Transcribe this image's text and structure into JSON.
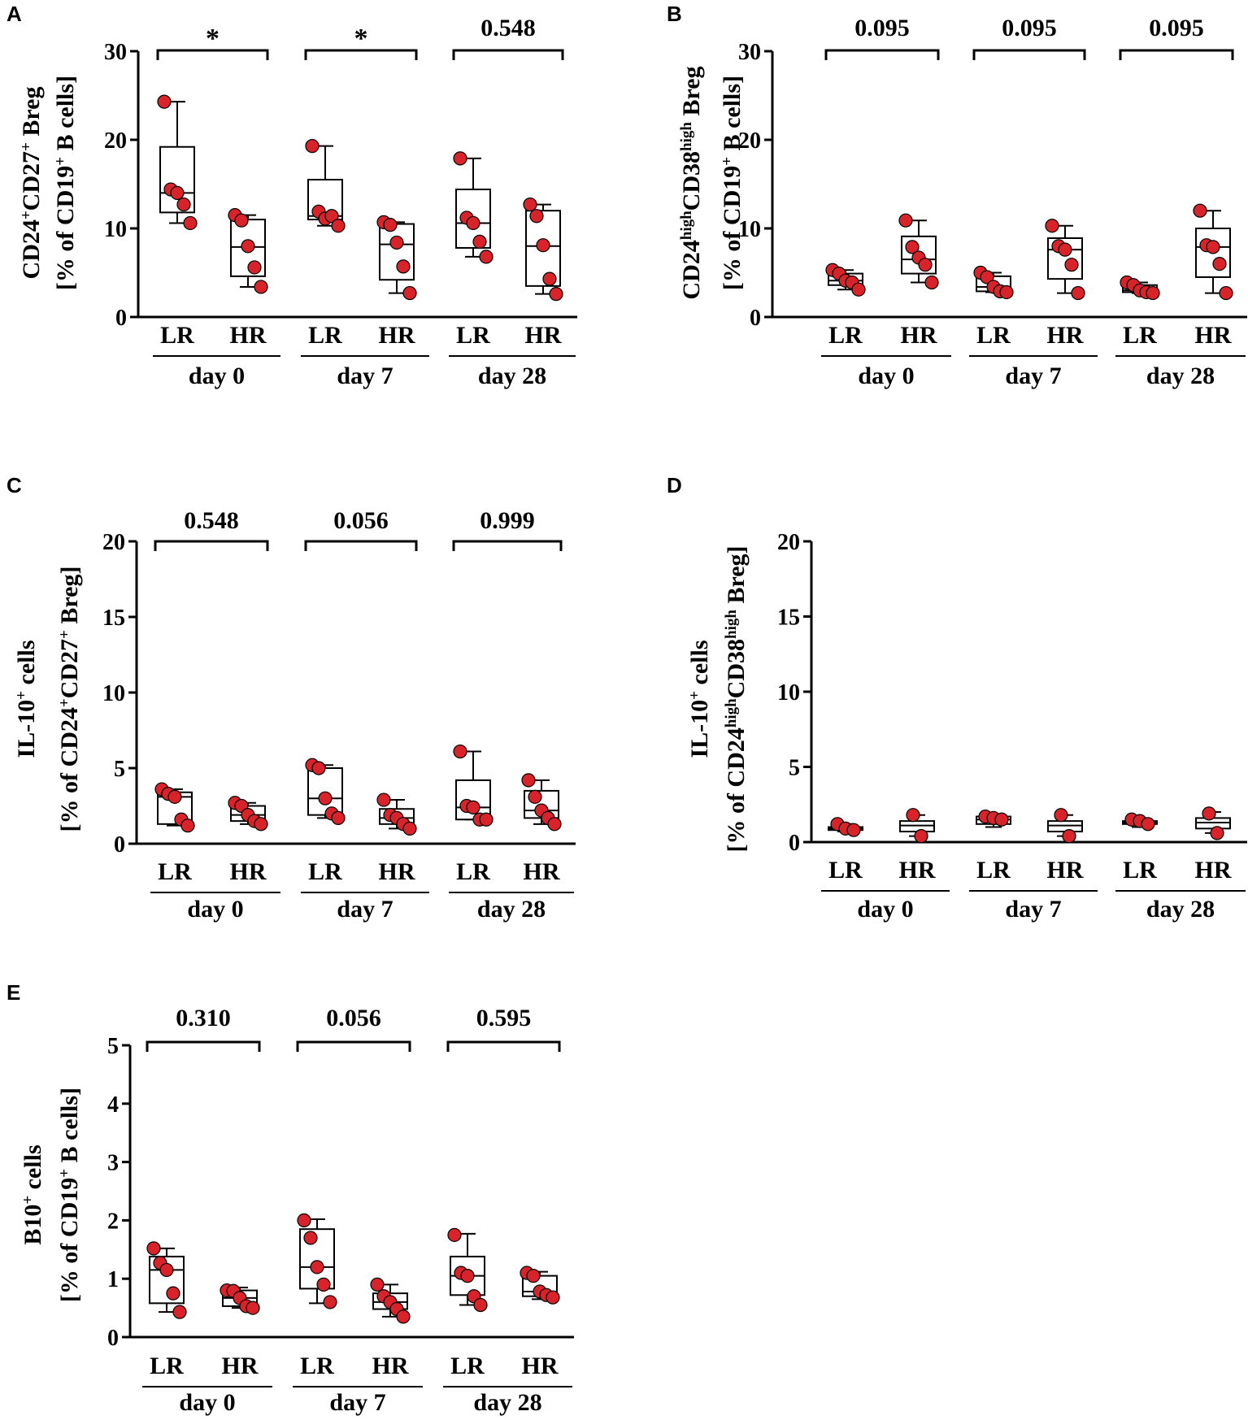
{
  "chart_data": [
    {
      "panel": "A",
      "type": "box",
      "ylabel": [
        "CD24+CD27+ Breg",
        "[% of CD19+ B cells]"
      ],
      "ylim": [
        0,
        30
      ],
      "yticks": [
        0,
        10,
        20,
        30
      ],
      "groups": [
        "LR",
        "HR",
        "LR",
        "HR",
        "LR",
        "HR"
      ],
      "days": [
        "day 0",
        "day 7",
        "day 28"
      ],
      "pvalues": [
        "*",
        "*",
        "0.548"
      ],
      "boxes": [
        {
          "min": 10.6,
          "q1": 11.8,
          "median": 14.0,
          "q3": 19.2,
          "max": 24.3,
          "points": [
            24.3,
            14.4,
            14.0,
            12.7,
            10.6
          ]
        },
        {
          "min": 3.4,
          "q1": 4.6,
          "median": 7.9,
          "q3": 11.0,
          "max": 11.5,
          "points": [
            11.5,
            10.9,
            8.0,
            5.6,
            3.4
          ]
        },
        {
          "min": 10.3,
          "q1": 11.0,
          "median": 11.4,
          "q3": 15.5,
          "max": 19.3,
          "points": [
            19.3,
            11.9,
            11.1,
            11.4,
            10.3
          ]
        },
        {
          "min": 2.7,
          "q1": 4.2,
          "median": 8.2,
          "q3": 10.5,
          "max": 10.7,
          "points": [
            10.7,
            10.4,
            8.4,
            5.7,
            2.7
          ]
        },
        {
          "min": 6.8,
          "q1": 7.8,
          "median": 10.6,
          "q3": 14.4,
          "max": 17.9,
          "points": [
            17.9,
            11.2,
            10.6,
            8.5,
            6.8
          ]
        },
        {
          "min": 2.6,
          "q1": 3.5,
          "median": 8.0,
          "q3": 12.0,
          "max": 12.7,
          "points": [
            12.7,
            11.4,
            8.1,
            4.3,
            2.6
          ]
        }
      ]
    },
    {
      "panel": "B",
      "type": "box",
      "ylabel": [
        "CD24highCD38high Breg",
        "[% of CD19+ B cells]"
      ],
      "ylim": [
        0,
        30
      ],
      "yticks": [
        0,
        10,
        20,
        30
      ],
      "groups": [
        "LR",
        "HR",
        "LR",
        "HR",
        "LR",
        "HR"
      ],
      "days": [
        "day 0",
        "day 7",
        "day 28"
      ],
      "pvalues": [
        "0.095",
        "0.095",
        "0.095"
      ],
      "boxes": [
        {
          "min": 3.1,
          "q1": 3.6,
          "median": 4.1,
          "q3": 4.9,
          "max": 5.3,
          "points": [
            5.3,
            4.9,
            4.1,
            3.9,
            3.1
          ]
        },
        {
          "min": 3.9,
          "q1": 4.9,
          "median": 6.5,
          "q3": 9.1,
          "max": 10.9,
          "points": [
            10.9,
            7.9,
            6.7,
            5.9,
            3.9
          ]
        },
        {
          "min": 2.8,
          "q1": 2.9,
          "median": 3.4,
          "q3": 4.6,
          "max": 5.0,
          "points": [
            5.0,
            4.5,
            3.4,
            2.9,
            2.8
          ]
        },
        {
          "min": 2.7,
          "q1": 4.3,
          "median": 7.6,
          "q3": 8.9,
          "max": 10.3,
          "points": [
            10.3,
            8.0,
            7.6,
            5.9,
            2.7
          ]
        },
        {
          "min": 2.7,
          "q1": 2.8,
          "median": 3.0,
          "q3": 3.6,
          "max": 3.9,
          "points": [
            3.9,
            3.6,
            3.0,
            2.8,
            2.7
          ]
        },
        {
          "min": 2.7,
          "q1": 4.5,
          "median": 7.9,
          "q3": 10.0,
          "max": 12.0,
          "points": [
            12.0,
            8.1,
            7.9,
            6.0,
            2.7
          ]
        }
      ]
    },
    {
      "panel": "C",
      "type": "box",
      "ylabel": [
        "IL-10+ cells",
        "[% of CD24+CD27+ Breg]"
      ],
      "ylim": [
        0,
        20
      ],
      "yticks": [
        0,
        5,
        10,
        15,
        20
      ],
      "groups": [
        "LR",
        "HR",
        "LR",
        "HR",
        "LR",
        "HR"
      ],
      "days": [
        "day 0",
        "day 7",
        "day 28"
      ],
      "pvalues": [
        "0.548",
        "0.056",
        "0.999"
      ],
      "boxes": [
        {
          "min": 1.2,
          "q1": 1.3,
          "median": 3.1,
          "q3": 3.4,
          "max": 3.6,
          "points": [
            3.6,
            3.3,
            3.1,
            1.6,
            1.2
          ]
        },
        {
          "min": 1.3,
          "q1": 1.5,
          "median": 1.9,
          "q3": 2.5,
          "max": 2.7,
          "points": [
            2.7,
            2.5,
            1.9,
            1.5,
            1.3
          ]
        },
        {
          "min": 1.7,
          "q1": 1.9,
          "median": 3.0,
          "q3": 5.0,
          "max": 5.2,
          "points": [
            5.2,
            5.0,
            3.0,
            2.0,
            1.7
          ]
        },
        {
          "min": 1.0,
          "q1": 1.3,
          "median": 1.7,
          "q3": 2.3,
          "max": 2.9,
          "points": [
            2.9,
            1.9,
            1.7,
            1.3,
            1.0
          ]
        },
        {
          "min": 1.6,
          "q1": 1.6,
          "median": 2.4,
          "q3": 4.2,
          "max": 6.1,
          "points": [
            6.1,
            2.5,
            2.4,
            1.6,
            1.6
          ]
        },
        {
          "min": 1.3,
          "q1": 1.7,
          "median": 2.2,
          "q3": 3.5,
          "max": 4.2,
          "points": [
            4.2,
            3.1,
            2.2,
            1.7,
            1.3
          ]
        }
      ]
    },
    {
      "panel": "D",
      "type": "box",
      "ylabel": [
        "IL-10+ cells",
        "[% of CD24highCD38high Breg]"
      ],
      "ylim": [
        0,
        20
      ],
      "yticks": [
        0,
        5,
        10,
        15,
        20
      ],
      "groups": [
        "LR",
        "HR",
        "LR",
        "HR",
        "LR",
        "HR"
      ],
      "days": [
        "day 0",
        "day 7",
        "day 28"
      ],
      "pvalues": [],
      "boxes": [
        {
          "min": 0.7,
          "q1": 0.8,
          "median": 0.9,
          "q3": 1.0,
          "max": 1.2,
          "points": [
            1.2,
            0.9,
            0.8
          ]
        },
        {
          "min": 0.4,
          "q1": 0.7,
          "median": 1.1,
          "q3": 1.4,
          "max": 1.8,
          "points": [
            1.8,
            0.4
          ]
        },
        {
          "min": 1.0,
          "q1": 1.2,
          "median": 1.5,
          "q3": 1.7,
          "max": 1.8,
          "points": [
            1.7,
            1.6,
            1.5
          ]
        },
        {
          "min": 0.4,
          "q1": 0.7,
          "median": 1.1,
          "q3": 1.4,
          "max": 1.8,
          "points": [
            1.8,
            0.4
          ]
        },
        {
          "min": 1.0,
          "q1": 1.2,
          "median": 1.3,
          "q3": 1.4,
          "max": 1.5,
          "points": [
            1.5,
            1.4,
            1.2
          ]
        },
        {
          "min": 0.6,
          "q1": 0.9,
          "median": 1.3,
          "q3": 1.6,
          "max": 2.0,
          "points": [
            1.9,
            0.6
          ]
        }
      ]
    },
    {
      "panel": "E",
      "type": "box",
      "ylabel": [
        "B10+ cells",
        "[% of CD19+ B cells]"
      ],
      "ylim": [
        0,
        5
      ],
      "yticks": [
        0,
        1,
        2,
        3,
        4,
        5
      ],
      "groups": [
        "LR",
        "HR",
        "LR",
        "HR",
        "LR",
        "HR"
      ],
      "days": [
        "day 0",
        "day 7",
        "day 28"
      ],
      "pvalues": [
        "0.310",
        "0.056",
        "0.595"
      ],
      "boxes": [
        {
          "min": 0.43,
          "q1": 0.58,
          "median": 1.15,
          "q3": 1.38,
          "max": 1.52,
          "points": [
            1.52,
            1.27,
            1.15,
            0.75,
            0.43
          ]
        },
        {
          "min": 0.5,
          "q1": 0.53,
          "median": 0.67,
          "q3": 0.8,
          "max": 0.85,
          "points": [
            0.8,
            0.79,
            0.67,
            0.53,
            0.5
          ]
        },
        {
          "min": 0.58,
          "q1": 0.83,
          "median": 1.2,
          "q3": 1.85,
          "max": 2.02,
          "points": [
            2.0,
            1.7,
            1.2,
            0.9,
            0.6
          ]
        },
        {
          "min": 0.35,
          "q1": 0.48,
          "median": 0.6,
          "q3": 0.75,
          "max": 0.9,
          "points": [
            0.9,
            0.7,
            0.6,
            0.48,
            0.35
          ]
        },
        {
          "min": 0.55,
          "q1": 0.72,
          "median": 1.05,
          "q3": 1.38,
          "max": 1.77,
          "points": [
            1.75,
            1.1,
            1.05,
            0.7,
            0.55
          ]
        },
        {
          "min": 0.65,
          "q1": 0.7,
          "median": 0.78,
          "q3": 1.05,
          "max": 1.12,
          "points": [
            1.1,
            1.05,
            0.78,
            0.72,
            0.68
          ]
        }
      ]
    }
  ]
}
